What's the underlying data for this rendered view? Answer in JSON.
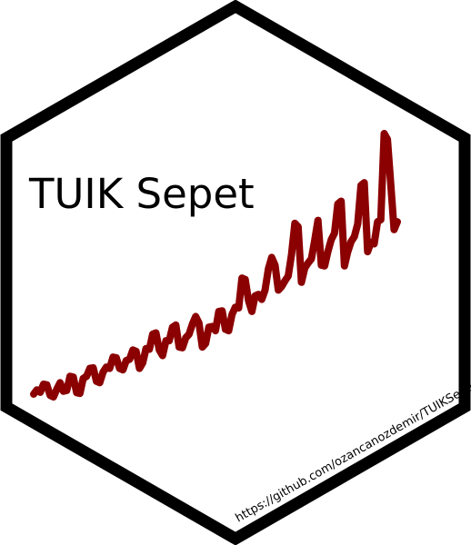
{
  "sticker": {
    "title": "TUIK Sepet",
    "url": "https://github.com/ozancanozdemir/TUIKSepet"
  },
  "colors": {
    "background": "#ffffff",
    "border": "#000000",
    "line": "#8b0000",
    "text": "#000000"
  },
  "chart_data": {
    "type": "line",
    "title": "",
    "xlabel": "",
    "ylabel": "",
    "grid": false,
    "axes_visible": false,
    "series": [
      {
        "values": [
          8.4,
          9.6,
          8.9,
          11.2,
          11.0,
          8.0,
          7.6,
          9.8,
          11.6,
          9.2,
          9.4,
          13.4,
          13.2,
          8.8,
          8.6,
          12.8,
          13.4,
          15.6,
          15.8,
          12.0,
          11.6,
          14.6,
          16.0,
          15.6,
          18.8,
          18.6,
          15.6,
          15.2,
          17.8,
          18.2,
          20.8,
          20.4,
          15.6,
          17.2,
          21.2,
          21.0,
          25.2,
          25.6,
          20.8,
          19.2,
          23.4,
          23.4,
          27.2,
          27.8,
          21.6,
          21.4,
          24.2,
          25.2,
          28.0,
          30.2,
          28.4,
          21.6,
          22.6,
          27.2,
          27.4,
          26.2,
          31.6,
          31.8,
          26.6,
          26.2,
          30.8,
          32.8,
          32.6,
          41.0,
          40.6,
          34.6,
          31.6,
          36.0,
          36.4,
          35.0,
          37.6,
          43.6,
          46.8,
          44.6,
          37.6,
          38.6,
          40.2,
          41.6,
          47.6,
          56.4,
          55.4,
          39.8,
          43.8,
          45.2,
          46.4,
          51.6,
          57.2,
          44.6,
          44.4,
          48.4,
          51.8,
          53.6,
          61.8,
          62.6,
          44.4,
          48.4,
          51.2,
          52.6,
          56.2,
          67.0,
          67.8,
          48.4,
          51.0,
          50.6,
          56.8,
          57.4,
          81.6,
          80.0,
          67.6,
          54.6,
          56.8
        ]
      }
    ]
  }
}
